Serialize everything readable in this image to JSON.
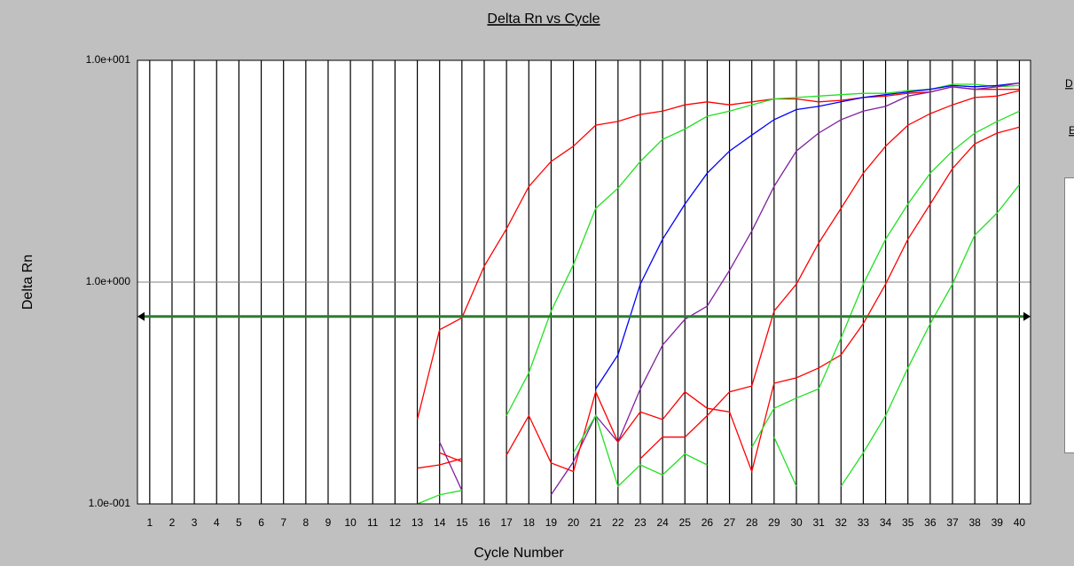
{
  "chart_data": {
    "type": "line",
    "title": "Delta Rn vs Cycle",
    "xlabel": "Cycle Number",
    "ylabel": "Delta Rn",
    "side_labels": [
      "D",
      "E"
    ],
    "x": [
      1,
      2,
      3,
      4,
      5,
      6,
      7,
      8,
      9,
      10,
      11,
      12,
      13,
      14,
      15,
      16,
      17,
      18,
      19,
      20,
      21,
      22,
      23,
      24,
      25,
      26,
      27,
      28,
      29,
      30,
      31,
      32,
      33,
      34,
      35,
      36,
      37,
      38,
      39,
      40
    ],
    "xlim": [
      0.45,
      40.5
    ],
    "xticks": [
      1,
      2,
      3,
      4,
      5,
      6,
      7,
      8,
      9,
      10,
      11,
      12,
      13,
      14,
      15,
      16,
      17,
      18,
      19,
      20,
      21,
      22,
      23,
      24,
      25,
      26,
      27,
      28,
      29,
      30,
      31,
      32,
      33,
      34,
      35,
      36,
      37,
      38,
      39,
      40
    ],
    "ylim": [
      0.1,
      10
    ],
    "yscale": "log",
    "yticks": [
      {
        "value": 0.1,
        "label": "1.0e-001"
      },
      {
        "value": 1,
        "label": "1.0e+000"
      },
      {
        "value": 10,
        "label": "1.0e+001"
      }
    ],
    "grid": true,
    "threshold": 0.7,
    "threshold_color": "#2e7d32",
    "series": [
      {
        "color": "#ff0000",
        "values": [
          null,
          null,
          null,
          null,
          null,
          null,
          null,
          null,
          null,
          null,
          null,
          null,
          0.24,
          0.61,
          0.69,
          1.18,
          1.74,
          2.7,
          3.5,
          4.1,
          5.1,
          5.3,
          5.7,
          5.9,
          6.3,
          6.5,
          6.3,
          6.5,
          6.7,
          6.7,
          6.5,
          6.6,
          6.8,
          6.9,
          7.1,
          7.2,
          7.6,
          7.4,
          7.4,
          7.4
        ]
      },
      {
        "color": "#22e022",
        "values": [
          null,
          null,
          null,
          null,
          null,
          null,
          null,
          null,
          null,
          null,
          null,
          null,
          null,
          null,
          null,
          null,
          0.25,
          0.39,
          0.74,
          1.2,
          2.15,
          2.65,
          3.5,
          4.4,
          4.9,
          5.6,
          5.9,
          6.3,
          6.7,
          6.8,
          6.9,
          7.0,
          7.1,
          7.1,
          7.3,
          7.4,
          7.8,
          7.8,
          7.6,
          7.7
        ]
      },
      {
        "color": "#0000ff",
        "values": [
          null,
          null,
          null,
          null,
          null,
          null,
          null,
          null,
          null,
          null,
          null,
          null,
          null,
          null,
          null,
          null,
          null,
          null,
          null,
          null,
          0.33,
          0.47,
          0.98,
          1.56,
          2.25,
          3.1,
          3.9,
          4.6,
          5.4,
          6.0,
          6.2,
          6.5,
          6.8,
          7.0,
          7.2,
          7.4,
          7.7,
          7.6,
          7.7,
          7.9
        ]
      },
      {
        "color": "#8020a0",
        "values": [
          null,
          null,
          null,
          null,
          null,
          null,
          null,
          null,
          null,
          null,
          null,
          null,
          null,
          0.19,
          0.115,
          null,
          null,
          null,
          0.11,
          0.155,
          0.25,
          0.19,
          0.33,
          0.52,
          0.68,
          0.78,
          1.13,
          1.7,
          2.7,
          3.9,
          4.7,
          5.4,
          5.9,
          6.2,
          6.9,
          7.2,
          7.6,
          7.4,
          7.6,
          7.9
        ]
      },
      {
        "color": "#ff0000",
        "values": [
          null,
          null,
          null,
          null,
          null,
          null,
          null,
          null,
          null,
          null,
          null,
          null,
          0.145,
          0.15,
          0.16,
          null,
          0.166,
          0.25,
          0.153,
          0.14,
          0.32,
          0.19,
          0.26,
          0.24,
          0.32,
          0.27,
          0.26,
          0.14,
          0.35,
          0.37,
          0.41,
          0.47,
          0.65,
          0.98,
          1.56,
          2.25,
          3.25,
          4.2,
          4.7,
          5.0
        ]
      },
      {
        "color": "#ff0000",
        "values": [
          null,
          null,
          null,
          null,
          null,
          null,
          null,
          null,
          null,
          null,
          null,
          null,
          null,
          0.17,
          0.155,
          null,
          null,
          null,
          null,
          null,
          null,
          null,
          0.16,
          0.2,
          0.2,
          0.25,
          0.32,
          0.34,
          0.74,
          0.98,
          1.5,
          2.15,
          3.1,
          4.1,
          5.1,
          5.75,
          6.3,
          6.8,
          6.9,
          7.3
        ]
      },
      {
        "color": "#22e022",
        "values": [
          null,
          null,
          null,
          null,
          null,
          null,
          null,
          null,
          null,
          null,
          null,
          null,
          0.1,
          0.11,
          0.115,
          null,
          null,
          null,
          null,
          0.17,
          0.25,
          0.12,
          0.15,
          0.135,
          0.168,
          0.15,
          null,
          0.18,
          0.27,
          0.3,
          0.33,
          0.56,
          0.98,
          1.56,
          2.25,
          3.1,
          3.9,
          4.7,
          5.3,
          5.9
        ]
      },
      {
        "color": "#22e022",
        "values": [
          null,
          null,
          null,
          null,
          null,
          null,
          null,
          null,
          null,
          null,
          null,
          null,
          null,
          null,
          null,
          null,
          null,
          null,
          null,
          null,
          null,
          null,
          null,
          null,
          null,
          null,
          null,
          null,
          0.2,
          0.12,
          null,
          0.12,
          0.17,
          0.25,
          0.41,
          0.65,
          0.98,
          1.63,
          2.05,
          2.75
        ]
      }
    ]
  }
}
